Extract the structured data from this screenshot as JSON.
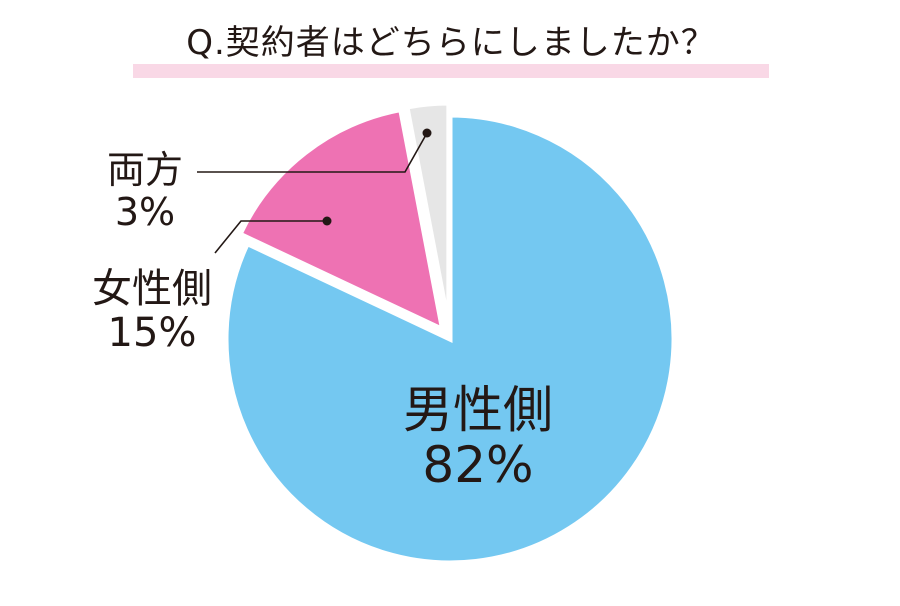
{
  "chart_data": {
    "type": "pie",
    "title": "Q.契約者はどちらにしましたか？",
    "slices": [
      {
        "label": "男性側",
        "value": 82,
        "display": "82%",
        "color": "#74c8f1"
      },
      {
        "label": "女性側",
        "value": 15,
        "display": "15%",
        "color": "#ee72b3"
      },
      {
        "label": "両方",
        "value": 3,
        "display": "3%",
        "color": "#e6e6e6"
      }
    ],
    "legend": "none",
    "start": "12 o'clock, clockwise",
    "exploded": true
  }
}
